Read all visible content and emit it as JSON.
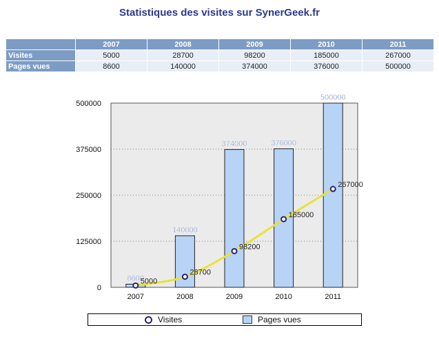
{
  "page": {
    "title": "Statistiques des visites sur SynerGeek.fr"
  },
  "table": {
    "columns": [
      "2007",
      "2008",
      "2009",
      "2010",
      "2011"
    ],
    "rows": [
      {
        "label": "Visites",
        "values": [
          "5000",
          "28700",
          "98200",
          "185000",
          "267000"
        ]
      },
      {
        "label": "Pages vues",
        "values": [
          "8600",
          "140000",
          "374000",
          "376000",
          "500000"
        ]
      }
    ]
  },
  "chart_data": {
    "type": "bar",
    "categories": [
      "2007",
      "2008",
      "2009",
      "2010",
      "2011"
    ],
    "series": [
      {
        "name": "Pages vues",
        "type": "bar",
        "values": [
          8600,
          140000,
          374000,
          376000,
          500000
        ],
        "color": "#b7d3f6"
      },
      {
        "name": "Visites",
        "type": "line",
        "values": [
          5000,
          28700,
          98200,
          185000,
          267000
        ],
        "color": "#e9e234"
      }
    ],
    "ylim": [
      0,
      500000
    ],
    "yticks": [
      "0",
      "125000",
      "250000",
      "375000",
      "500000"
    ],
    "grid": true,
    "legend": "bottom",
    "xlabel": "",
    "ylabel": ""
  },
  "colors": {
    "title": "#2b3a8c",
    "table_header": "#7c9cc4",
    "table_cell": "#e8eef6",
    "plot_bg": "#ebebeb",
    "bar_fill": "#b7d3f6",
    "line": "#e9e234",
    "marker": "#2a1f7a",
    "bar_label": "#6f86c6"
  }
}
